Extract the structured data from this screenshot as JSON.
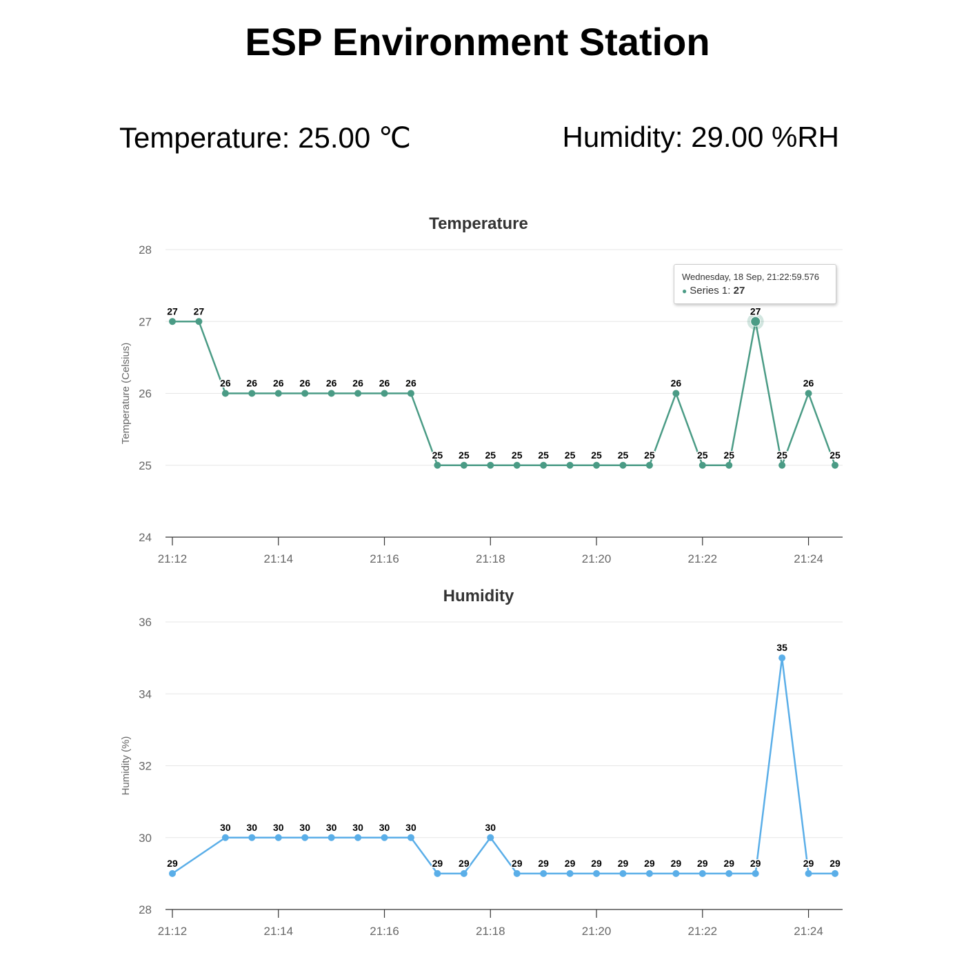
{
  "page": {
    "title": "ESP Environment Station",
    "temperature_reading": "Temperature: 25.00 ℃",
    "humidity_reading": "Humidity: 29.00 %RH"
  },
  "tooltip": {
    "header": "Wednesday, 18 Sep, 21:22:59.576",
    "series_label": "Series 1: ",
    "value": "27"
  },
  "chart_data": [
    {
      "type": "line",
      "title": "Temperature",
      "ylabel": "Temperature (Celsius)",
      "xlabel": "",
      "color": "#4a9b85",
      "ylim": [
        24,
        28
      ],
      "yticks": [
        24,
        25,
        26,
        27,
        28
      ],
      "xticks": [
        "21:12",
        "21:14",
        "21:16",
        "21:18",
        "21:20",
        "21:22",
        "21:24"
      ],
      "grid": true,
      "series": [
        {
          "x": [
            "21:12:00",
            "21:12:30",
            "21:13:00",
            "21:13:30",
            "21:14:00",
            "21:14:30",
            "21:15:00",
            "21:15:30",
            "21:16:00",
            "21:16:30",
            "21:17:00",
            "21:17:30",
            "21:18:00",
            "21:18:30",
            "21:19:00",
            "21:19:30",
            "21:20:00",
            "21:20:30",
            "21:21:00",
            "21:21:30",
            "21:22:00",
            "21:22:30",
            "21:23:00",
            "21:23:30",
            "21:24:00",
            "21:24:30"
          ],
          "values": [
            27,
            27,
            26,
            26,
            26,
            26,
            26,
            26,
            26,
            26,
            25,
            25,
            25,
            25,
            25,
            25,
            25,
            25,
            25,
            26,
            25,
            25,
            27,
            25,
            26,
            25
          ]
        }
      ]
    },
    {
      "type": "line",
      "title": "Humidity",
      "ylabel": "Humidity (%)",
      "xlabel": "",
      "color": "#5aaee8",
      "ylim": [
        28,
        36
      ],
      "yticks": [
        28,
        30,
        32,
        34,
        36
      ],
      "xticks": [
        "21:12",
        "21:14",
        "21:16",
        "21:18",
        "21:20",
        "21:22",
        "21:24"
      ],
      "grid": true,
      "series": [
        {
          "x": [
            "21:12:00",
            "21:13:00",
            "21:13:30",
            "21:14:00",
            "21:14:30",
            "21:15:00",
            "21:15:30",
            "21:16:00",
            "21:16:30",
            "21:17:00",
            "21:17:30",
            "21:18:00",
            "21:18:30",
            "21:19:00",
            "21:19:30",
            "21:20:00",
            "21:20:30",
            "21:21:00",
            "21:21:30",
            "21:22:00",
            "21:22:30",
            "21:23:00",
            "21:23:30",
            "21:24:00",
            "21:24:30"
          ],
          "values": [
            29,
            30,
            30,
            30,
            30,
            30,
            30,
            30,
            30,
            29,
            29,
            30,
            29,
            29,
            29,
            29,
            29,
            29,
            29,
            29,
            29,
            29,
            35,
            29,
            29
          ]
        }
      ]
    }
  ]
}
